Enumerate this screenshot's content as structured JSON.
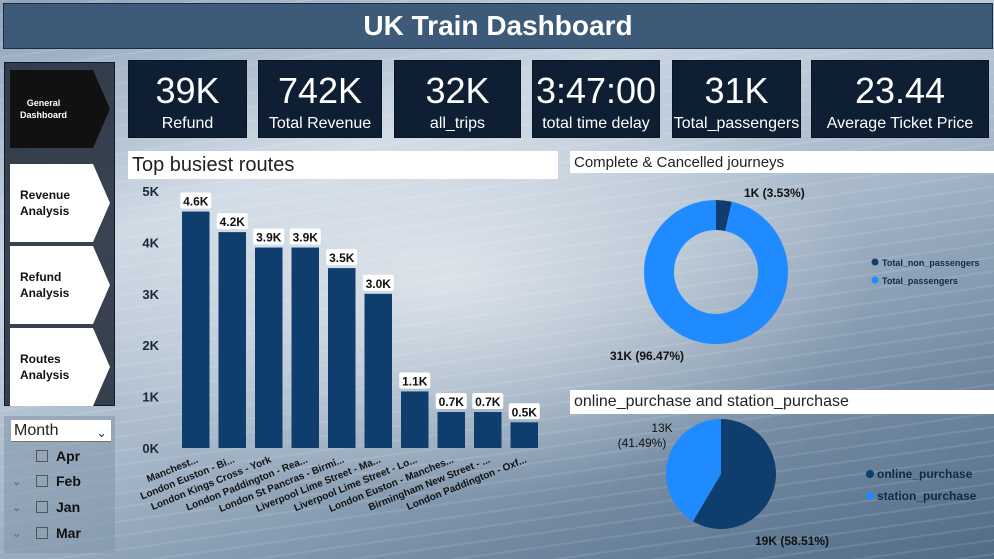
{
  "header": {
    "title": "UK Train Dashboard"
  },
  "nav": {
    "items": [
      {
        "label": "General\nDashboard",
        "active": true
      },
      {
        "label": "Revenue\nAnalysis",
        "active": false
      },
      {
        "label": "Refund\nAnalysis",
        "active": false
      },
      {
        "label": "Routes\nAnalysis",
        "active": false
      }
    ]
  },
  "slicer": {
    "title": "Month",
    "options": [
      "Apr",
      "Feb",
      "Jan",
      "Mar"
    ]
  },
  "kpis": [
    {
      "value": "39K",
      "label": "Refund"
    },
    {
      "value": "742K",
      "label": "Total Revenue"
    },
    {
      "value": "32K",
      "label": "all_trips"
    },
    {
      "value": "3:47:00",
      "label": "total time delay"
    },
    {
      "value": "31K",
      "label": "Total_passengers"
    },
    {
      "value": "23.44",
      "label": "Average Ticket Price"
    }
  ],
  "colors": {
    "bar": "#0f3e6e",
    "donut_main": "#1f8bff",
    "donut_minor": "#0f3e6e",
    "pie_online": "#0f3e6e",
    "pie_station": "#1f8bff"
  },
  "chart_data": [
    {
      "type": "bar",
      "title": "Top busiest routes",
      "categories": [
        "Manchest...",
        "London Euston - Bi...",
        "London Kings Cross - York",
        "London Paddington - Rea...",
        "London St Pancras - Birmi...",
        "Liverpool Lime Street - Ma...",
        "Liverpool Lime Street - Lo...",
        "London Euston - Manches...",
        "Birmingham New Street - ...",
        "London Paddington - Oxf..."
      ],
      "values": [
        4600,
        4200,
        3900,
        3900,
        3500,
        3000,
        1100,
        700,
        700,
        500
      ],
      "data_labels": [
        "4.6K",
        "4.2K",
        "3.9K",
        "3.9K",
        "3.5K",
        "3.0K",
        "1.1K",
        "0.7K",
        "0.7K",
        "0.5K"
      ],
      "yticks": [
        "0K",
        "1K",
        "2K",
        "3K",
        "4K",
        "5K"
      ],
      "ylim": [
        0,
        5000
      ]
    },
    {
      "type": "pie",
      "title": "Complete & Cancelled journeys",
      "donut": true,
      "slices": [
        {
          "name": "Total_non_passengers",
          "value": 3.53,
          "label": "1K (3.53%)"
        },
        {
          "name": "Total_passengers",
          "value": 96.47,
          "label": "31K (96.47%)"
        }
      ]
    },
    {
      "type": "pie",
      "title": "online_purchase and station_purchase",
      "donut": false,
      "slices": [
        {
          "name": "online_purchase",
          "value": 58.51,
          "label": "19K (58.51%)"
        },
        {
          "name": "station_purchase",
          "value": 41.49,
          "label_line1": "13K",
          "label_line2": "(41.49%)"
        }
      ]
    }
  ]
}
